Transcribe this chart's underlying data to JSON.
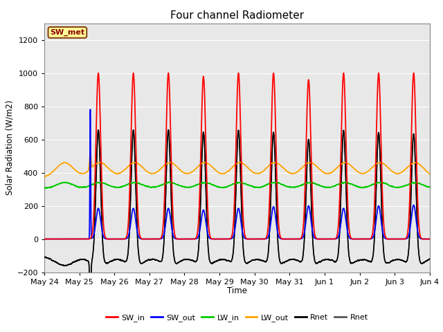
{
  "title": "Four channel Radiometer",
  "xlabel": "Time",
  "ylabel": "Solar Radiation (W/m2)",
  "ylim": [
    -200,
    1300
  ],
  "annotation_text": "SW_met",
  "annotation_facecolor": "#FFFF99",
  "annotation_edgecolor": "#8B4513",
  "plot_bgcolor": "#E8E8E8",
  "grid_color": "#FFFFFF",
  "legend_entries": [
    {
      "label": "SW_in",
      "color": "#FF0000"
    },
    {
      "label": "SW_out",
      "color": "#0000FF"
    },
    {
      "label": "LW_in",
      "color": "#00CC00"
    },
    {
      "label": "LW_out",
      "color": "#FFA500"
    },
    {
      "label": "Rnet",
      "color": "#000000"
    },
    {
      "label": "Rnet",
      "color": "#555555"
    }
  ],
  "tick_labels": [
    "May 24",
    "May 25",
    "May 26",
    "May 27",
    "May 28",
    "May 29",
    "May 30",
    "May 31",
    "Jun 1",
    "Jun 2",
    "Jun 3",
    "Jun 4"
  ]
}
